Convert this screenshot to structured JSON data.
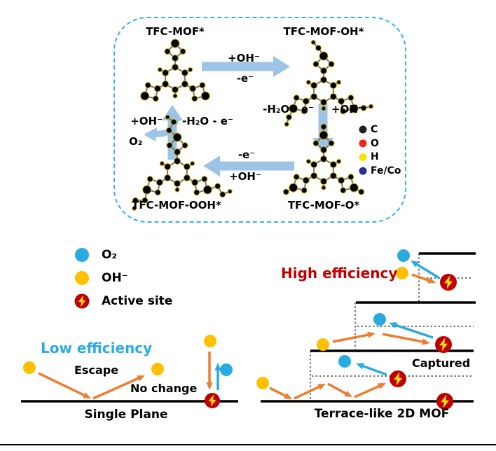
{
  "cycle": {
    "states": {
      "mof": "TFC-MOF*",
      "mof_oh": "TFC-MOF-OH*",
      "mof_ooh": "TFC-MOF-OOH*",
      "mof_o": "TFC-MOF-O*"
    },
    "arrows": {
      "top_above": "+OH⁻",
      "top_below": "-e⁻",
      "right_left": "-H₂O - e⁻",
      "right_right": "+OH⁻",
      "bottom_above": "-e⁻",
      "bottom_below": "+OH⁻",
      "left_left": "+OH⁻",
      "left_right": "-H₂O - e⁻"
    },
    "o2_release": "O₂",
    "atom_legend": [
      {
        "label": "C",
        "color": "#1f1f1f"
      },
      {
        "label": "O",
        "color": "#f22613"
      },
      {
        "label": "H",
        "color": "#f0e400"
      },
      {
        "label": "Fe/Co",
        "color": "#2b2ba0"
      }
    ]
  },
  "species_legend": {
    "o2": "O₂",
    "oh": "OH⁻",
    "active_site": "Active site"
  },
  "single_plane": {
    "title": "Low efficiency",
    "escape": "Escape",
    "no_change": "No change",
    "caption": "Single Plane"
  },
  "terrace": {
    "title": "High efficiency",
    "captured": "Captured",
    "caption": "Terrace-like 2D MOF"
  },
  "colors": {
    "box_dash": "#35b2ee",
    "cycle_arrow": "#9dc3e6",
    "orange_arrow": "#ed7d31",
    "cyan": "#29abe2",
    "yellow": "#ffc000",
    "active_red": "#c00000",
    "bolt_yellow": "#ffe000",
    "low_eff_text": "#29abe2",
    "high_eff_text": "#c00000",
    "bond": "#757575",
    "dotted": "#737373",
    "line": "#000000"
  }
}
